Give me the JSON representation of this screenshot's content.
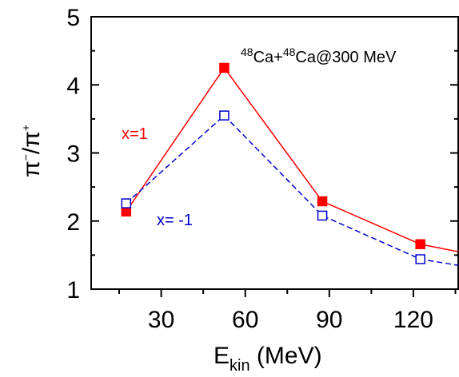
{
  "chart_data": {
    "type": "line",
    "title": "",
    "xlabel_main": "E",
    "xlabel_sub": "kin",
    "xlabel_unit": " (MeV)",
    "ylabel_main": "π",
    "ylabel_sup1": "−",
    "ylabel_mid": "/π",
    "ylabel_sup2": "+",
    "xlim": [
      5,
      136
    ],
    "ylim": [
      1,
      5
    ],
    "x_ticks": [
      30,
      60,
      90,
      120
    ],
    "y_ticks": [
      1,
      2,
      3,
      4,
      5
    ],
    "grid": false,
    "annotation": {
      "sup1": "48",
      "t1": "Ca+",
      "sup2": "48",
      "t2": "Ca@300 MeV"
    },
    "series": [
      {
        "name": "x=1",
        "color": "#ff0000",
        "marker": "filled-square",
        "line": "solid",
        "x": [
          17.5,
          52.5,
          87.5,
          122.5,
          136
        ],
        "y": [
          2.14,
          4.25,
          2.29,
          1.66,
          1.55
        ]
      },
      {
        "name": "x= -1",
        "color": "#0000cc",
        "marker": "open-square",
        "line": "dashed",
        "x": [
          17.5,
          52.5,
          87.5,
          122.5,
          136
        ],
        "y": [
          2.26,
          3.55,
          2.08,
          1.44,
          1.35
        ]
      }
    ]
  }
}
